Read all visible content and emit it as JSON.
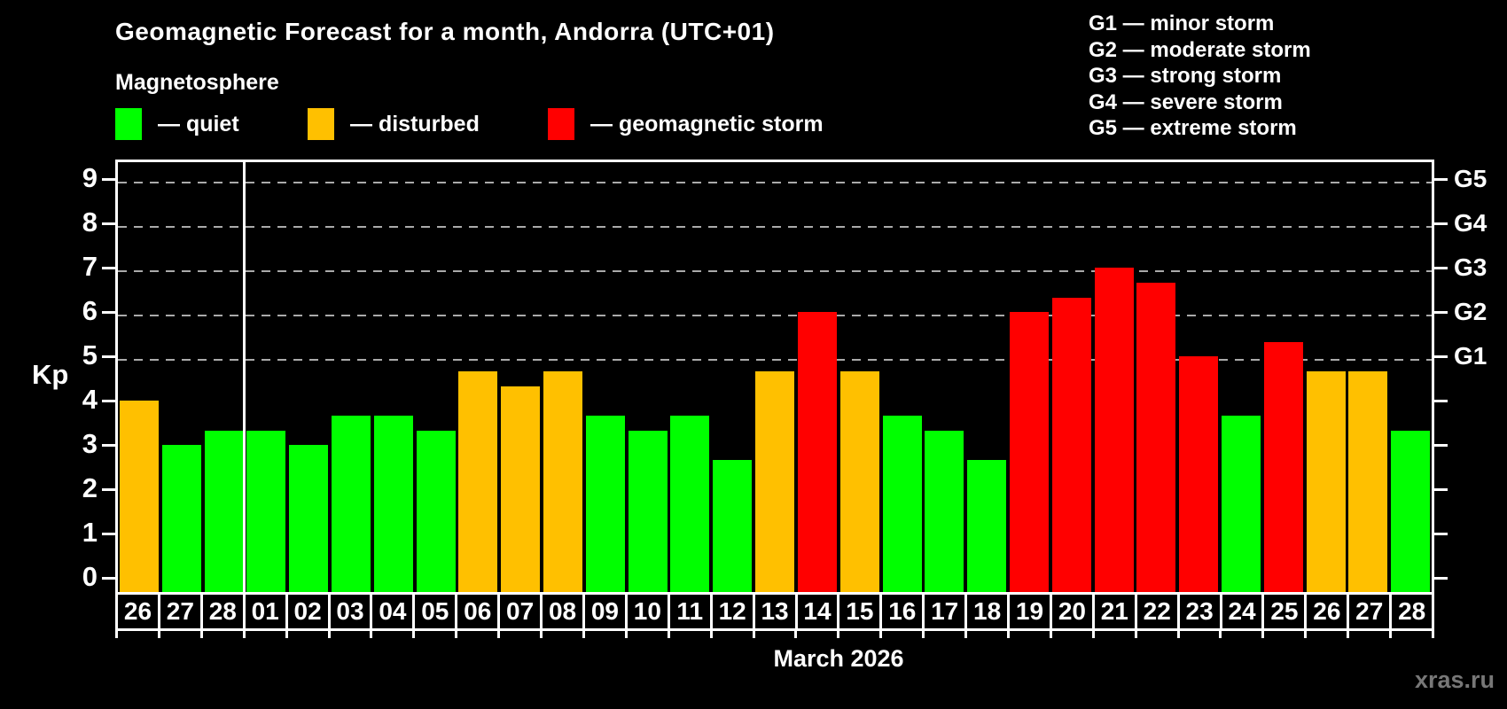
{
  "title": "Geomagnetic Forecast for a month, Andorra (UTC+01)",
  "subtitle": "Magnetosphere",
  "legend": [
    {
      "status": "quiet",
      "label": "— quiet"
    },
    {
      "status": "disturbed",
      "label": "— disturbed"
    },
    {
      "status": "storm",
      "label": "— geomagnetic storm"
    }
  ],
  "storm_scale_legend": [
    "G1 — minor storm",
    "G2 — moderate storm",
    "G3 — strong storm",
    "G4 — severe storm",
    "G5 — extreme storm"
  ],
  "colors": {
    "quiet": "#00ff00",
    "disturbed": "#ffc000",
    "storm": "#ff0000",
    "gridline": "#aaaaaa",
    "axis": "#ffffff",
    "watermark": "#777777"
  },
  "watermark": "xras.ru",
  "chart_data": {
    "type": "bar",
    "title": "Geomagnetic Forecast for a month, Andorra (UTC+01)",
    "xlabel": "March 2026",
    "ylabel": "Kp",
    "ylim": [
      0,
      9.44
    ],
    "yticks": [
      0,
      1,
      2,
      3,
      4,
      5,
      6,
      7,
      8,
      9
    ],
    "gridlines_at": [
      5,
      6,
      7,
      8,
      9
    ],
    "grid": "dashed, horizontal, at G-storm levels only",
    "legend_position": "top",
    "right_axis_labels": [
      {
        "label": "G1",
        "kp": 5
      },
      {
        "label": "G2",
        "kp": 6
      },
      {
        "label": "G3",
        "kp": 7
      },
      {
        "label": "G4",
        "kp": 8
      },
      {
        "label": "G5",
        "kp": 9
      }
    ],
    "month_separator_after_index": 2,
    "month_caption": "March 2026",
    "days": [
      {
        "label": "26",
        "kp": 4.0,
        "status": "disturbed"
      },
      {
        "label": "27",
        "kp": 3.0,
        "status": "quiet"
      },
      {
        "label": "28",
        "kp": 3.33,
        "status": "quiet"
      },
      {
        "label": "01",
        "kp": 3.33,
        "status": "quiet"
      },
      {
        "label": "02",
        "kp": 3.0,
        "status": "quiet"
      },
      {
        "label": "03",
        "kp": 3.67,
        "status": "quiet"
      },
      {
        "label": "04",
        "kp": 3.67,
        "status": "quiet"
      },
      {
        "label": "05",
        "kp": 3.33,
        "status": "quiet"
      },
      {
        "label": "06",
        "kp": 4.67,
        "status": "disturbed"
      },
      {
        "label": "07",
        "kp": 4.33,
        "status": "disturbed"
      },
      {
        "label": "08",
        "kp": 4.67,
        "status": "disturbed"
      },
      {
        "label": "09",
        "kp": 3.67,
        "status": "quiet"
      },
      {
        "label": "10",
        "kp": 3.33,
        "status": "quiet"
      },
      {
        "label": "11",
        "kp": 3.67,
        "status": "quiet"
      },
      {
        "label": "12",
        "kp": 2.67,
        "status": "quiet"
      },
      {
        "label": "13",
        "kp": 4.67,
        "status": "disturbed"
      },
      {
        "label": "14",
        "kp": 6.0,
        "status": "storm"
      },
      {
        "label": "15",
        "kp": 4.67,
        "status": "disturbed"
      },
      {
        "label": "16",
        "kp": 3.67,
        "status": "quiet"
      },
      {
        "label": "17",
        "kp": 3.33,
        "status": "quiet"
      },
      {
        "label": "18",
        "kp": 2.67,
        "status": "quiet"
      },
      {
        "label": "19",
        "kp": 6.0,
        "status": "storm"
      },
      {
        "label": "20",
        "kp": 6.33,
        "status": "storm"
      },
      {
        "label": "21",
        "kp": 7.0,
        "status": "storm"
      },
      {
        "label": "22",
        "kp": 6.67,
        "status": "storm"
      },
      {
        "label": "23",
        "kp": 5.0,
        "status": "storm"
      },
      {
        "label": "24",
        "kp": 3.67,
        "status": "quiet"
      },
      {
        "label": "25",
        "kp": 5.33,
        "status": "storm"
      },
      {
        "label": "26",
        "kp": 4.67,
        "status": "disturbed"
      },
      {
        "label": "27",
        "kp": 4.67,
        "status": "disturbed"
      },
      {
        "label": "28",
        "kp": 3.33,
        "status": "quiet"
      }
    ]
  }
}
